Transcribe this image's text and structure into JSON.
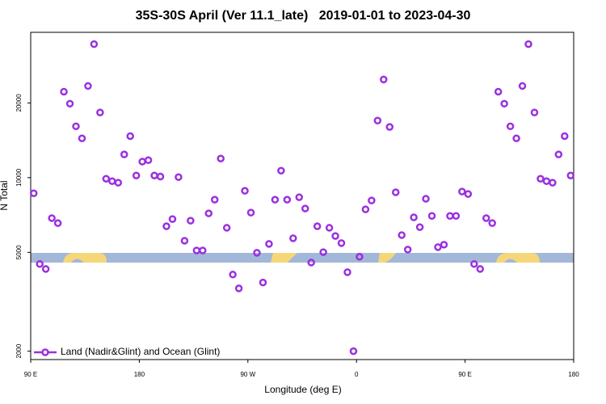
{
  "chart_data": {
    "type": "scatter",
    "title": "35S-30S April (Ver 11.1_late)   2019-01-01 to 2023-04-30",
    "x_label": "Longitude (deg E)",
    "y_label": "N Total",
    "log_y": true,
    "legend": "bottom-left",
    "xlim": [
      90,
      540
    ],
    "ylim": [
      1850,
      38500
    ],
    "xticks": [
      {
        "value": 90,
        "label": "90 E"
      },
      {
        "value": 180,
        "label": "180"
      },
      {
        "value": 270,
        "label": "90 W"
      },
      {
        "value": 360,
        "label": "0"
      },
      {
        "value": 450,
        "label": "90 E"
      },
      {
        "value": 540,
        "label": "180"
      }
    ],
    "yticks": [
      2000,
      5000,
      10000,
      20000
    ],
    "series": [
      {
        "name": "Land (Nadir&Glint) and Ocean (Glint)",
        "color": "#9b30e0",
        "x": [
          92.5,
          97.5,
          102.5,
          107.5,
          112.5,
          117.5,
          122.5,
          127.5,
          132.5,
          137.5,
          142.5,
          147.5,
          152.5,
          157.5,
          162.5,
          167.5,
          172.5,
          177.5,
          182.5,
          187.5,
          192.5,
          197.5,
          202.5,
          207.5,
          212.5,
          217.5,
          222.5,
          227.5,
          232.5,
          237.5,
          242.5,
          247.5,
          252.5,
          257.5,
          262.5,
          267.5,
          272.5,
          277.5,
          282.5,
          287.5,
          292.5,
          297.5,
          302.5,
          307.5,
          312.5,
          317.5,
          322.5,
          327.5,
          332.5,
          337.5,
          342.5,
          347.5,
          352.5,
          357.5,
          362.5,
          367.5,
          372.5,
          377.5,
          382.5,
          387.5,
          392.5,
          397.5,
          402.5,
          407.5,
          412.5,
          417.5,
          422.5,
          427.5,
          432.5,
          437.5,
          442.5,
          447.5,
          452.5,
          457.5,
          462.5,
          467.5,
          472.5,
          477.5,
          482.5,
          487.5,
          492.5,
          497.5,
          502.5,
          507.5,
          512.5,
          517.5,
          522.5,
          527.5,
          532.5,
          537.5
        ],
        "values": [
          8650,
          4490,
          4285,
          6870,
          6560,
          22200,
          19860,
          16100,
          14400,
          23400,
          34500,
          18300,
          9900,
          9680,
          9540,
          12400,
          14700,
          10200,
          11600,
          11760,
          10200,
          10100,
          6370,
          6810,
          10050,
          5570,
          6710,
          5090,
          5090,
          7180,
          8150,
          11940,
          6280,
          4070,
          3580,
          8850,
          7230,
          4980,
          3780,
          5410,
          8150,
          10670,
          8150,
          5700,
          8340,
          7510,
          4550,
          6370,
          5010,
          6280,
          5820,
          5450,
          4160,
          2000,
          4800,
          7450,
          8090,
          16980,
          24850,
          16000,
          8730,
          5870,
          5130,
          6920,
          6320,
          8220,
          7010,
          5250,
          5370,
          7010,
          7010,
          8790,
          8590,
          4490,
          4285,
          6870,
          6560,
          22200,
          19860,
          16100,
          14400,
          23400,
          34500,
          18300,
          9900,
          9680,
          9540,
          12400,
          14700,
          10200
        ]
      }
    ]
  }
}
